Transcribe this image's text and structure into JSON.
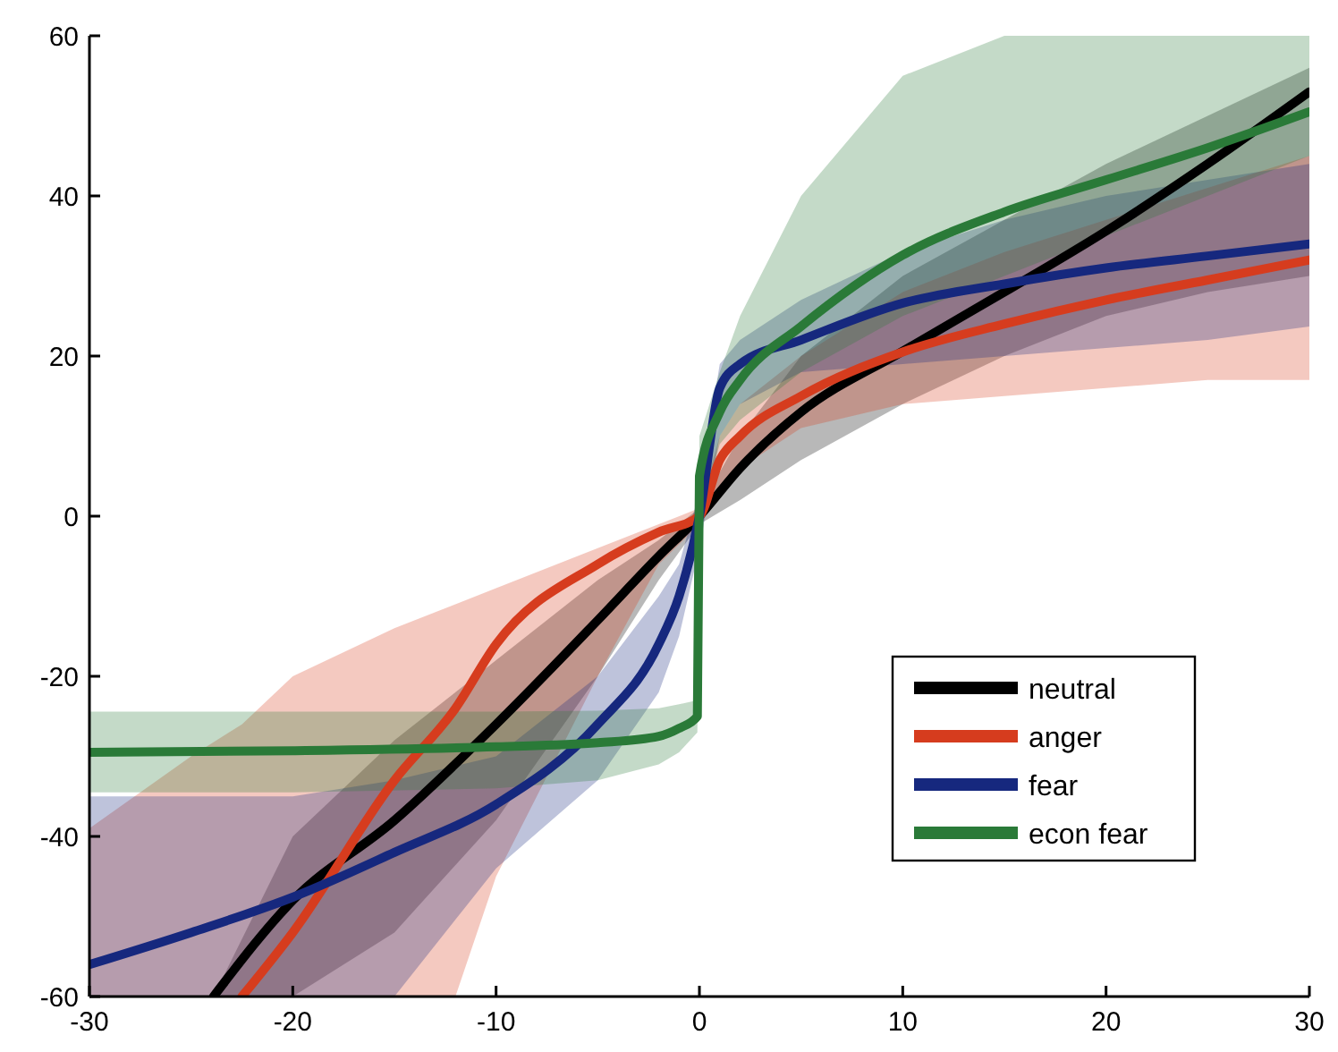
{
  "chart_data": {
    "type": "line",
    "xlim": [
      -30,
      30
    ],
    "ylim": [
      -60,
      60
    ],
    "xticks": [
      -30,
      -20,
      -10,
      0,
      10,
      20,
      30
    ],
    "yticks": [
      -60,
      -40,
      -20,
      0,
      20,
      40,
      60
    ],
    "grid": false,
    "legend": "right",
    "line_style": "solid",
    "marker": "none",
    "series": [
      {
        "name": "neutral",
        "color": "#000000",
        "x": [
          -23.9,
          -20,
          -15,
          -10,
          -5,
          -2,
          0,
          2,
          5,
          10,
          15,
          20,
          25,
          30
        ],
        "values": [
          -60,
          -48,
          -38,
          -26,
          -13,
          -5,
          0,
          6,
          13,
          20.6,
          28,
          35.6,
          44,
          53
        ],
        "lower": [
          -60,
          -60,
          -52,
          -38,
          -20,
          -8,
          -1,
          2,
          7,
          14,
          20,
          25,
          28,
          30
        ],
        "upper": [
          -60,
          -40,
          -28,
          -18,
          -8,
          -3,
          1,
          10,
          20,
          30,
          37,
          44,
          50,
          56
        ]
      },
      {
        "name": "anger",
        "color": "#d63c1e",
        "x": [
          -30,
          -25,
          -22.5,
          -20,
          -15,
          -12,
          -10,
          -5,
          -2,
          0,
          1,
          2,
          5,
          10,
          15,
          20,
          25,
          30
        ],
        "values": [
          null,
          null,
          -60,
          -52,
          -33,
          -24,
          -16,
          -6,
          -2,
          0,
          7,
          10,
          15,
          20.5,
          24,
          27,
          29.5,
          32
        ],
        "lower": [
          -60,
          -60,
          -60,
          -60,
          -60,
          -60,
          -45,
          -20,
          -6,
          -1,
          3,
          6,
          11,
          14,
          15,
          16,
          17,
          17
        ],
        "upper": [
          -39,
          -30,
          -26,
          -20,
          -14,
          -11,
          -9,
          -4,
          -1,
          1,
          10,
          14,
          20,
          28,
          33,
          37,
          41,
          45
        ]
      },
      {
        "name": "fear",
        "color": "#16287e",
        "x": [
          -30,
          -25,
          -20,
          -15,
          -10,
          -5,
          -2,
          -1,
          0,
          1,
          2,
          5,
          10,
          15,
          20,
          25,
          30
        ],
        "values": [
          -56,
          -52,
          -47.6,
          -42,
          -36,
          -26,
          -16,
          -10,
          0,
          16,
          19,
          22,
          26.6,
          29,
          31,
          32.5,
          34
        ],
        "lower": [
          -60,
          -60,
          -60,
          -60,
          -44,
          -33,
          -22,
          -15,
          -4,
          10,
          14,
          18,
          19,
          20,
          21,
          22,
          23.7
        ],
        "upper": [
          -35,
          -35,
          -35,
          -33,
          -30,
          -20,
          -10,
          -6,
          3,
          19,
          22,
          27,
          33,
          37,
          40,
          42,
          44
        ]
      },
      {
        "name": "econ fear",
        "color": "#2a7a38",
        "x": [
          -30,
          -20,
          -10,
          -5,
          -2,
          -1,
          -0.1,
          0,
          1,
          2,
          5,
          10,
          15,
          20,
          25,
          30
        ],
        "values": [
          -29.5,
          -29.3,
          -28.8,
          -28.3,
          -27.5,
          -26.5,
          -25,
          5,
          13,
          17,
          23.7,
          32.6,
          38,
          42,
          46,
          50.5
        ],
        "lower": [
          -34.5,
          -34.5,
          -34,
          -33,
          -31,
          -29.5,
          -27,
          0,
          9,
          12,
          18,
          25,
          30,
          35,
          40,
          45
        ],
        "upper": [
          -24.4,
          -24.4,
          -24.4,
          -24.3,
          -24,
          -23.5,
          -23,
          10,
          18,
          25,
          40,
          55,
          60,
          60,
          60,
          60
        ]
      }
    ]
  }
}
